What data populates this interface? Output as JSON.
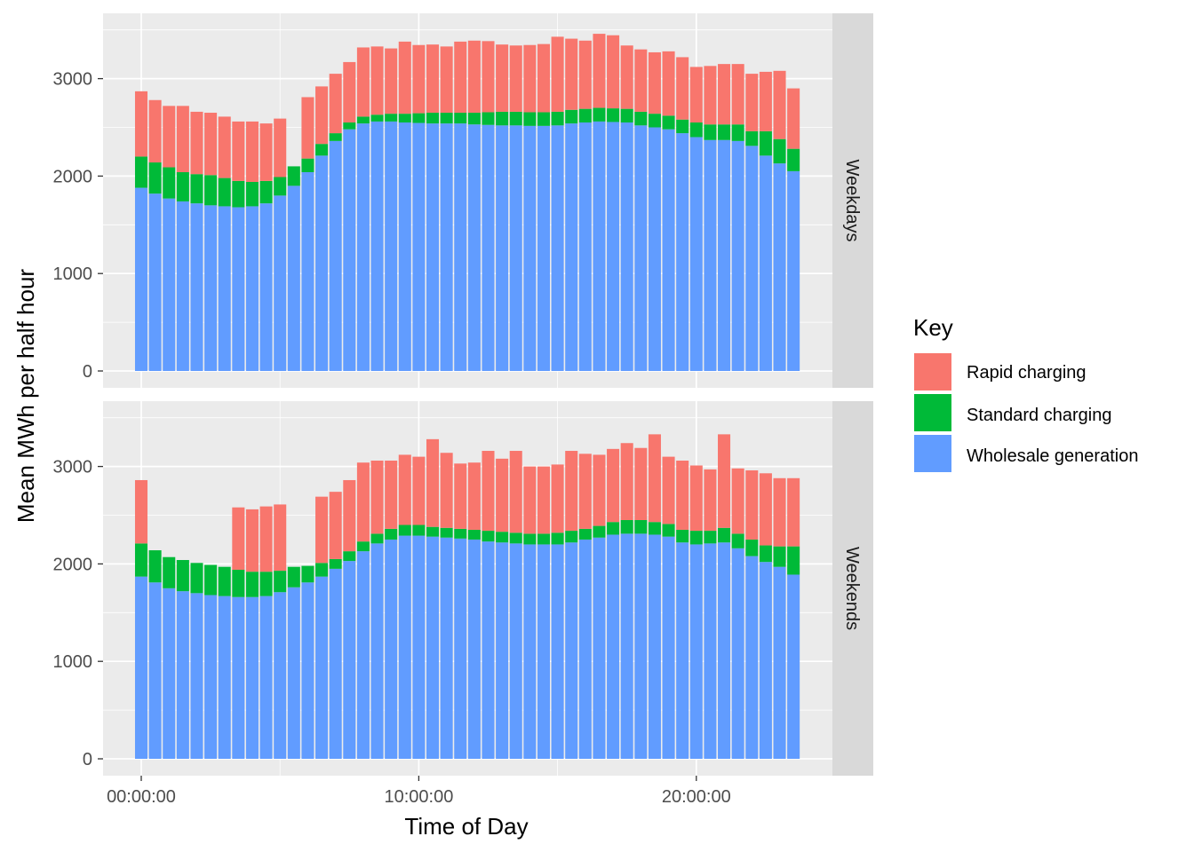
{
  "chart_data": {
    "type": "bar",
    "stacked": true,
    "xlabel": "Time of Day",
    "ylabel": "Mean MWh per half hour",
    "x_tick_labels": [
      "00:00:00",
      "10:00:00",
      "20:00:00"
    ],
    "x_tick_hours": [
      0,
      10,
      20
    ],
    "y_ticks": [
      0,
      1000,
      2000,
      3000
    ],
    "ylim": [
      0,
      3500
    ],
    "grid": true,
    "legend": {
      "title": "Key",
      "placement": "right",
      "entries": [
        "Rapid charging",
        "Standard charging",
        "Wholesale generation"
      ]
    },
    "colors": {
      "Rapid charging": "#F8766D",
      "Standard charging": "#00BA38",
      "Wholesale generation": "#619CFF",
      "panel_bg": "#EBEBEB",
      "strip_bg": "#D9D9D9"
    },
    "x_hours": [
      0,
      0.5,
      1,
      1.5,
      2,
      2.5,
      3,
      3.5,
      4,
      4.5,
      5,
      5.5,
      6,
      6.5,
      7,
      7.5,
      8,
      8.5,
      9,
      9.5,
      10,
      10.5,
      11,
      11.5,
      12,
      12.5,
      13,
      13.5,
      14,
      14.5,
      15,
      15.5,
      16,
      16.5,
      17,
      17.5,
      18,
      18.5,
      19,
      19.5,
      20,
      20.5,
      21,
      21.5,
      22,
      22.5,
      23,
      23.5
    ],
    "panels": [
      {
        "facet": "Weekdays",
        "series": [
          {
            "name": "Wholesale generation",
            "values": [
              1880,
              1820,
              1770,
              1740,
              1720,
              1700,
              1690,
              1680,
              1690,
              1720,
              1800,
              1900,
              2040,
              2210,
              2360,
              2480,
              2540,
              2560,
              2560,
              2550,
              2545,
              2540,
              2540,
              2540,
              2530,
              2525,
              2520,
              2520,
              2515,
              2515,
              2520,
              2540,
              2550,
              2560,
              2555,
              2550,
              2520,
              2500,
              2480,
              2440,
              2400,
              2370,
              2370,
              2360,
              2310,
              2210,
              2130,
              2050
            ]
          },
          {
            "name": "Standard charging",
            "values": [
              320,
              320,
              320,
              300,
              300,
              310,
              290,
              270,
              250,
              230,
              190,
              200,
              140,
              120,
              80,
              70,
              70,
              70,
              80,
              90,
              100,
              110,
              110,
              110,
              120,
              130,
              140,
              140,
              140,
              140,
              140,
              140,
              140,
              140,
              140,
              140,
              140,
              140,
              140,
              140,
              150,
              160,
              160,
              170,
              150,
              250,
              250,
              230
            ]
          },
          {
            "name": "Rapid charging",
            "values": [
              670,
              640,
              630,
              680,
              640,
              640,
              630,
              610,
              620,
              590,
              600,
              0,
              630,
              590,
              610,
              620,
              710,
              700,
              670,
              740,
              700,
              700,
              680,
              730,
              740,
              730,
              690,
              680,
              690,
              700,
              770,
              730,
              700,
              760,
              750,
              650,
              640,
              630,
              660,
              640,
              570,
              600,
              620,
              620,
              590,
              610,
              700,
              620
            ]
          }
        ]
      },
      {
        "facet": "Weekends",
        "series": [
          {
            "name": "Wholesale generation",
            "values": [
              1870,
              1810,
              1750,
              1720,
              1700,
              1680,
              1670,
              1660,
              1660,
              1670,
              1710,
              1760,
              1810,
              1870,
              1950,
              2030,
              2130,
              2210,
              2250,
              2290,
              2290,
              2280,
              2270,
              2260,
              2250,
              2230,
              2220,
              2210,
              2200,
              2200,
              2200,
              2220,
              2250,
              2270,
              2300,
              2310,
              2310,
              2300,
              2280,
              2220,
              2200,
              2210,
              2220,
              2160,
              2080,
              2020,
              1970,
              1890
            ]
          },
          {
            "name": "Standard charging",
            "values": [
              340,
              330,
              320,
              320,
              310,
              310,
              300,
              280,
              260,
              250,
              220,
              210,
              170,
              140,
              100,
              100,
              100,
              100,
              110,
              110,
              110,
              100,
              100,
              100,
              100,
              110,
              110,
              110,
              110,
              110,
              120,
              120,
              110,
              120,
              130,
              140,
              140,
              130,
              130,
              130,
              140,
              130,
              150,
              150,
              170,
              170,
              210,
              290
            ]
          },
          {
            "name": "Rapid charging",
            "values": [
              650,
              0,
              0,
              0,
              0,
              0,
              0,
              640,
              640,
              670,
              680,
              0,
              0,
              680,
              690,
              730,
              810,
              750,
              700,
              720,
              700,
              900,
              770,
              670,
              690,
              820,
              750,
              840,
              690,
              690,
              700,
              820,
              770,
              730,
              750,
              790,
              740,
              900,
              690,
              710,
              670,
              630,
              960,
              670,
              710,
              740,
              700,
              700
            ]
          }
        ]
      }
    ]
  }
}
